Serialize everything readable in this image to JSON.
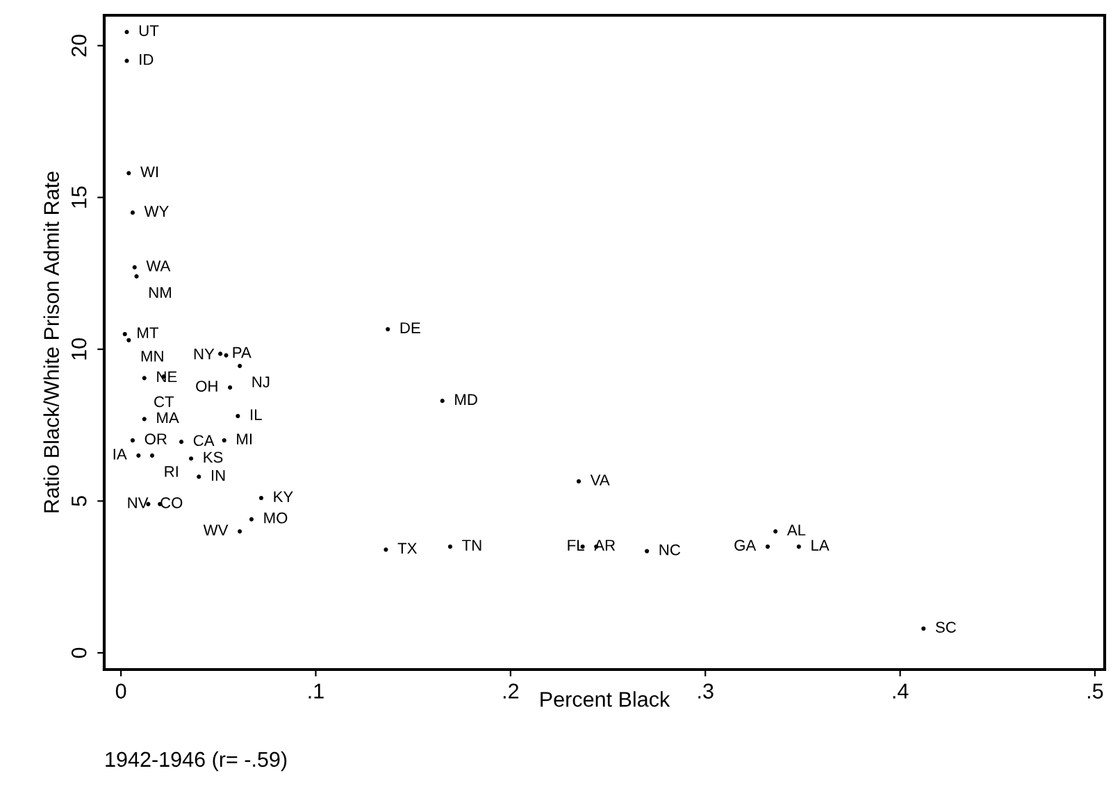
{
  "chart_data": {
    "type": "scatter",
    "xlabel": "Percent Black",
    "ylabel": "Ratio Black/White Prison Admit Rate",
    "annotations": [
      "1942-1946 (r= -.59)"
    ],
    "xlim": [
      -0.0086,
      0.505
    ],
    "ylim": [
      -0.55,
      21.0
    ],
    "xticks": [
      0,
      {
        "value": 0.1,
        "label": ".1"
      },
      {
        "value": 0.2,
        "label": ".2"
      },
      {
        "value": 0.3,
        "label": ".3"
      },
      {
        "value": 0.4,
        "label": ".4"
      },
      {
        "value": 0.5,
        "label": ".5"
      }
    ],
    "yticks": [
      0,
      5,
      10,
      15,
      20
    ],
    "grid": false,
    "marker": "circle",
    "series": [
      {
        "color": "#000000",
        "x": [
          0.003,
          0.003,
          0.004,
          0.006,
          0.007,
          0.008,
          0.002,
          0.004,
          0.012,
          0.022,
          0.051,
          0.054,
          0.061,
          0.056,
          0.06,
          0.012,
          0.006,
          0.009,
          0.016,
          0.031,
          0.053,
          0.036,
          0.04,
          0.014,
          0.02,
          0.072,
          0.067,
          0.061,
          0.137,
          0.165,
          0.235,
          0.136,
          0.169,
          0.237,
          0.244,
          0.27,
          0.336,
          0.332,
          0.348,
          0.412
        ],
        "values": [
          20.45,
          19.5,
          15.8,
          14.5,
          12.7,
          12.4,
          10.5,
          10.3,
          9.05,
          9.1,
          9.85,
          9.8,
          9.45,
          8.74,
          7.8,
          7.7,
          7.0,
          6.5,
          6.5,
          6.95,
          7.0,
          6.4,
          5.8,
          4.9,
          4.9,
          5.1,
          4.4,
          4.0,
          10.66,
          8.3,
          5.65,
          3.4,
          3.5,
          3.5,
          3.5,
          3.35,
          4.0,
          3.5,
          3.5,
          0.8
        ],
        "value_labels": [
          "UT",
          "ID",
          "WI",
          "WY",
          "WA",
          "NM",
          "MT",
          "MN",
          "NE",
          "CT",
          "PA",
          "NY",
          "NJ",
          "OH",
          "IL",
          "MA",
          "OR",
          "IA",
          "RI",
          "CA",
          "MI",
          "KS",
          "IN",
          "CO",
          "NV",
          "KY",
          "MO",
          "WV",
          "DE",
          "MD",
          "VA",
          "TX",
          "TN",
          "AR",
          "FL",
          "NC",
          "AL",
          "GA",
          "LA",
          "SC"
        ]
      }
    ]
  }
}
